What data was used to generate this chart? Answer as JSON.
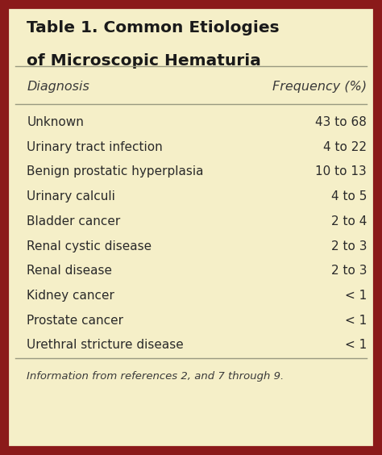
{
  "title_line1": "Table 1. Common Etiologies",
  "title_line2": "of Microscopic Hematuria",
  "col1_header": "Diagnosis",
  "col2_header": "Frequency (%)",
  "rows": [
    [
      "Unknown",
      "43 to 68"
    ],
    [
      "Urinary tract infection",
      "4 to 22"
    ],
    [
      "Benign prostatic hyperplasia",
      "10 to 13"
    ],
    [
      "Urinary calculi",
      "4 to 5"
    ],
    [
      "Bladder cancer",
      "2 to 4"
    ],
    [
      "Renal cystic disease",
      "2 to 3"
    ],
    [
      "Renal disease",
      "2 to 3"
    ],
    [
      "Kidney cancer",
      "< 1"
    ],
    [
      "Prostate cancer",
      "< 1"
    ],
    [
      "Urethral stricture disease",
      "< 1"
    ]
  ],
  "footer": "Information from references 2, and 7 through 9.",
  "bg_color": "#F5EFC8",
  "border_color": "#8B1A1A",
  "title_color": "#1a1a1a",
  "header_color": "#3a3a3a",
  "row_text_color": "#2a2a2a",
  "line_color": "#999980",
  "title_fontsize": 14.5,
  "header_fontsize": 11.5,
  "row_fontsize": 11,
  "footer_fontsize": 9.5,
  "border_lw": 8,
  "fig_width": 4.74,
  "fig_height": 5.64,
  "dpi": 100
}
